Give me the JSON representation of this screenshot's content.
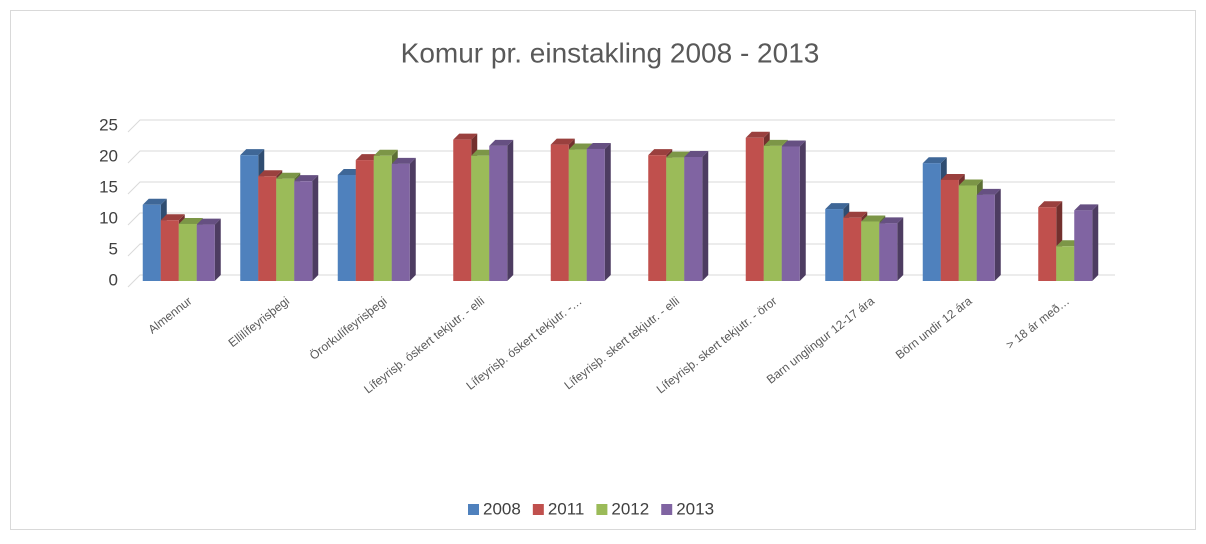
{
  "chart_data": {
    "type": "bar3d",
    "title": "Komur pr. einstakling 2008 - 2013",
    "categories": [
      "Almennur",
      "Ellilífeyrisþegi",
      "Örorkulífeyrisþegi",
      "Lífeyrisþ. óskert tekjutr. - elli",
      "Lífeyrisþ. óskert tekjutr. -…",
      "Lífeyrisþ. skert tekjutr. - elli",
      "Lífeyrisþ. skert tekjutr. - öror",
      "Barn unglingur 12-17 ára",
      "Börn undir 12 ára",
      "> 18 ár með…"
    ],
    "series": [
      {
        "name": "2008",
        "color": "#4f81bd",
        "values": [
          12.3,
          20.3,
          17.1,
          null,
          null,
          null,
          null,
          11.6,
          19.0,
          null
        ]
      },
      {
        "name": "2011",
        "color": "#c0504d",
        "values": [
          9.8,
          16.9,
          19.5,
          22.8,
          22.0,
          20.3,
          23.1,
          10.2,
          16.3,
          11.9
        ]
      },
      {
        "name": "2012",
        "color": "#9bbb59",
        "values": [
          9.2,
          16.5,
          20.2,
          20.2,
          21.2,
          19.9,
          21.8,
          9.6,
          15.4,
          5.6
        ]
      },
      {
        "name": "2013",
        "color": "#8064a2",
        "values": [
          9.1,
          16.1,
          18.9,
          21.8,
          21.3,
          20.0,
          21.7,
          9.3,
          13.9,
          11.4
        ]
      }
    ],
    "ylim": [
      0,
      25
    ],
    "yticks": [
      0,
      5,
      10,
      15,
      20,
      25
    ],
    "grid": true,
    "legend": "bottom"
  }
}
